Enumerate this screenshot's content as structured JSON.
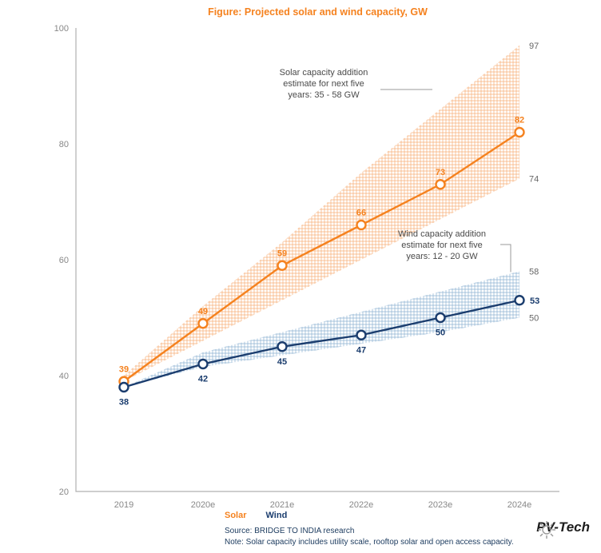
{
  "title": "Figure: Projected solar and wind capacity, GW",
  "colors": {
    "solar": "#f5821f",
    "wind": "#1b3d6e",
    "axis": "#b0b0b0",
    "tick_text": "#888888",
    "band_label_text": "#666666",
    "annotation_text": "#4a4a4a"
  },
  "chart_data": {
    "type": "line",
    "title": "Figure: Projected solar and wind capacity, GW",
    "categories": [
      "2019",
      "2020e",
      "2021e",
      "2022e",
      "2023e",
      "2024e"
    ],
    "series": [
      {
        "name": "Solar",
        "values": [
          39,
          49,
          59,
          66,
          73,
          82
        ],
        "color": "#f5821f",
        "band_color": "#f59a54",
        "band_upper": [
          40,
          52,
          63,
          75,
          86,
          97
        ],
        "band_lower": [
          39,
          46,
          53,
          60,
          67,
          74
        ]
      },
      {
        "name": "Wind",
        "values": [
          38,
          42,
          45,
          47,
          50,
          53
        ],
        "color": "#1b3d6e",
        "band_color": "#6f9ec7",
        "band_upper": [
          38,
          44,
          47.5,
          51,
          54.5,
          58
        ],
        "band_lower": [
          38,
          41.5,
          43.5,
          45.5,
          47.5,
          50
        ]
      }
    ],
    "ylim": [
      20,
      100
    ],
    "yticks": [
      100,
      80,
      60,
      40,
      20
    ],
    "grid": false,
    "legend_position": "bottom",
    "band_end_labels": {
      "solar_upper": "97",
      "solar_lower": "74",
      "wind_upper": "58",
      "wind_lower": "50"
    }
  },
  "annotations": {
    "solar_lines": [
      "Solar capacity addition",
      "estimate for next five",
      "years: 35 - 58 GW"
    ],
    "wind_lines": [
      "Wind capacity addition",
      "estimate for next five",
      "years: 12 - 20 GW"
    ]
  },
  "legend": {
    "solar": "Solar",
    "wind": "Wind"
  },
  "footer": {
    "source": "Source: BRIDGE TO INDIA research",
    "note": "Note: Solar capacity includes utility scale, rooftop solar and open access capacity."
  },
  "logo": {
    "text": "PV-Tech"
  }
}
